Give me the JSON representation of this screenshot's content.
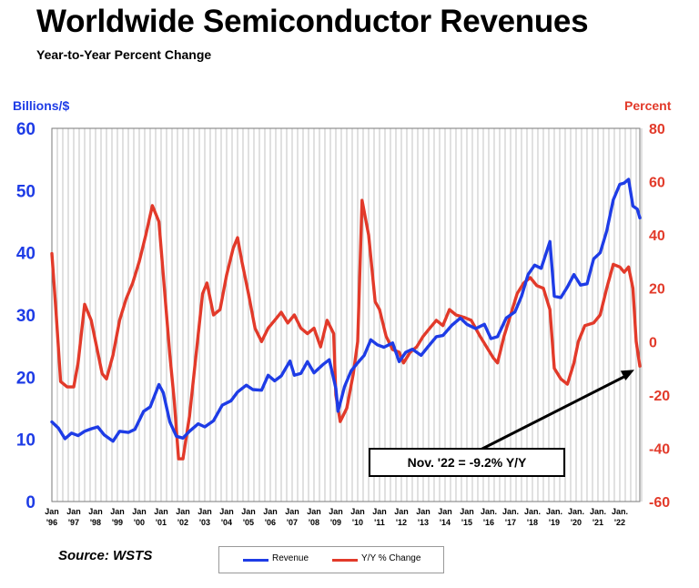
{
  "header": {
    "title": "Worldwide Semiconductor Revenues",
    "subtitle": "Year-to-Year Percent Change"
  },
  "axes": {
    "left_label": "Billions/$",
    "right_label": "Percent"
  },
  "source": "Source: WSTS",
  "legend": {
    "revenue": "Revenue",
    "yoy": "Y/Y % Change"
  },
  "callout": "Nov. '22 = -9.2% Y/Y",
  "colors": {
    "revenue": "#1e3ce6",
    "yoy": "#e23a2a"
  },
  "chart_data": {
    "type": "line",
    "title": "Worldwide Semiconductor Revenues",
    "subtitle": "Year-to-Year Percent Change",
    "ylabel_left": "Billions/$",
    "ylabel_right": "Percent",
    "ylim_left": [
      0,
      60
    ],
    "ylim_right": [
      -60,
      80
    ],
    "yticks_left": [
      0,
      10,
      20,
      30,
      40,
      50,
      60
    ],
    "yticks_right": [
      -60,
      -40,
      -20,
      0,
      20,
      40,
      60,
      80
    ],
    "xlim": [
      1996.0,
      2022.917
    ],
    "x_tick_labels": [
      {
        "top": "Jan",
        "bottom": "'96"
      },
      {
        "top": "Jan",
        "bottom": "'97"
      },
      {
        "top": "Jan",
        "bottom": "'98"
      },
      {
        "top": "Jan",
        "bottom": "'99"
      },
      {
        "top": "Jan",
        "bottom": "'00"
      },
      {
        "top": "Jan",
        "bottom": "'01"
      },
      {
        "top": "Jan",
        "bottom": "'02"
      },
      {
        "top": "Jan",
        "bottom": "'03"
      },
      {
        "top": "Jan",
        "bottom": "'04"
      },
      {
        "top": "Jan",
        "bottom": "'05"
      },
      {
        "top": "Jan",
        "bottom": "'06"
      },
      {
        "top": "Jan",
        "bottom": "'07"
      },
      {
        "top": "Jan",
        "bottom": "'08"
      },
      {
        "top": "Jan",
        "bottom": "'09"
      },
      {
        "top": "Jan",
        "bottom": "'10"
      },
      {
        "top": "Jan",
        "bottom": "'11"
      },
      {
        "top": "Jan",
        "bottom": "'12"
      },
      {
        "top": "Jan",
        "bottom": "'13"
      },
      {
        "top": "Jan",
        "bottom": "'14"
      },
      {
        "top": "Jan",
        "bottom": "'15"
      },
      {
        "top": "Jan.",
        "bottom": "'16"
      },
      {
        "top": "Jan.",
        "bottom": "'17"
      },
      {
        "top": "Jan.",
        "bottom": "'18"
      },
      {
        "top": "Jan.",
        "bottom": "'19"
      },
      {
        "top": "Jan.",
        "bottom": "'20"
      },
      {
        "top": "Jan.",
        "bottom": "'21"
      },
      {
        "top": "Jan.",
        "bottom": "'22"
      }
    ],
    "grid": "vertical",
    "legend_position": "bottom-center",
    "series": [
      {
        "name": "Revenue",
        "axis": "left",
        "points": [
          [
            1996.0,
            12.8
          ],
          [
            1996.3,
            11.8
          ],
          [
            1996.6,
            10.1
          ],
          [
            1996.9,
            11.0
          ],
          [
            1997.2,
            10.6
          ],
          [
            1997.5,
            11.3
          ],
          [
            1997.8,
            11.7
          ],
          [
            1998.1,
            12.0
          ],
          [
            1998.4,
            10.7
          ],
          [
            1998.8,
            9.7
          ],
          [
            1999.1,
            11.3
          ],
          [
            1999.5,
            11.1
          ],
          [
            1999.8,
            11.6
          ],
          [
            2000.2,
            14.5
          ],
          [
            2000.5,
            15.2
          ],
          [
            2000.9,
            18.8
          ],
          [
            2001.1,
            17.5
          ],
          [
            2001.4,
            12.8
          ],
          [
            2001.7,
            10.5
          ],
          [
            2002.0,
            10.2
          ],
          [
            2002.3,
            11.3
          ],
          [
            2002.7,
            12.5
          ],
          [
            2003.0,
            12.0
          ],
          [
            2003.4,
            13.0
          ],
          [
            2003.8,
            15.5
          ],
          [
            2004.2,
            16.2
          ],
          [
            2004.5,
            17.6
          ],
          [
            2004.9,
            18.7
          ],
          [
            2005.2,
            18.0
          ],
          [
            2005.6,
            17.9
          ],
          [
            2005.9,
            20.3
          ],
          [
            2006.2,
            19.4
          ],
          [
            2006.5,
            20.2
          ],
          [
            2006.9,
            22.6
          ],
          [
            2007.1,
            20.3
          ],
          [
            2007.4,
            20.6
          ],
          [
            2007.7,
            22.5
          ],
          [
            2008.0,
            20.7
          ],
          [
            2008.4,
            22.0
          ],
          [
            2008.7,
            22.8
          ],
          [
            2009.0,
            18.2
          ],
          [
            2009.1,
            14.5
          ],
          [
            2009.4,
            18.5
          ],
          [
            2009.7,
            21.0
          ],
          [
            2010.0,
            22.3
          ],
          [
            2010.3,
            23.5
          ],
          [
            2010.6,
            26.0
          ],
          [
            2010.9,
            25.2
          ],
          [
            2011.2,
            24.8
          ],
          [
            2011.6,
            25.5
          ],
          [
            2011.9,
            22.5
          ],
          [
            2012.2,
            24.0
          ],
          [
            2012.5,
            24.5
          ],
          [
            2012.9,
            23.5
          ],
          [
            2013.2,
            24.8
          ],
          [
            2013.6,
            26.5
          ],
          [
            2013.9,
            26.7
          ],
          [
            2014.3,
            28.3
          ],
          [
            2014.7,
            29.5
          ],
          [
            2015.0,
            28.5
          ],
          [
            2015.4,
            27.8
          ],
          [
            2015.8,
            28.5
          ],
          [
            2016.1,
            26.2
          ],
          [
            2016.4,
            26.5
          ],
          [
            2016.8,
            29.5
          ],
          [
            2017.2,
            30.5
          ],
          [
            2017.5,
            33.0
          ],
          [
            2017.8,
            36.5
          ],
          [
            2018.1,
            38.0
          ],
          [
            2018.4,
            37.5
          ],
          [
            2018.8,
            41.8
          ],
          [
            2019.0,
            33.0
          ],
          [
            2019.3,
            32.8
          ],
          [
            2019.6,
            34.5
          ],
          [
            2019.9,
            36.5
          ],
          [
            2020.2,
            34.8
          ],
          [
            2020.5,
            35.0
          ],
          [
            2020.8,
            39.0
          ],
          [
            2021.1,
            40.0
          ],
          [
            2021.4,
            43.5
          ],
          [
            2021.7,
            48.5
          ],
          [
            2022.0,
            51.0
          ],
          [
            2022.2,
            51.2
          ],
          [
            2022.4,
            51.8
          ],
          [
            2022.6,
            47.5
          ],
          [
            2022.8,
            47.0
          ],
          [
            2022.917,
            45.6
          ]
        ]
      },
      {
        "name": "Y/Y % Change",
        "axis": "right",
        "points": [
          [
            1996.0,
            33.0
          ],
          [
            1996.2,
            10.0
          ],
          [
            1996.4,
            -15.0
          ],
          [
            1996.7,
            -17.0
          ],
          [
            1997.0,
            -17.0
          ],
          [
            1997.2,
            -8.0
          ],
          [
            1997.5,
            14.0
          ],
          [
            1997.8,
            8.0
          ],
          [
            1998.0,
            0.0
          ],
          [
            1998.3,
            -12.0
          ],
          [
            1998.5,
            -14.0
          ],
          [
            1998.8,
            -5.0
          ],
          [
            1999.1,
            8.0
          ],
          [
            1999.4,
            16.0
          ],
          [
            1999.7,
            22.0
          ],
          [
            2000.0,
            30.0
          ],
          [
            2000.3,
            40.0
          ],
          [
            2000.6,
            51.0
          ],
          [
            2000.9,
            45.0
          ],
          [
            2001.1,
            25.0
          ],
          [
            2001.4,
            -5.0
          ],
          [
            2001.6,
            -22.0
          ],
          [
            2001.8,
            -44.0
          ],
          [
            2002.0,
            -44.0
          ],
          [
            2002.3,
            -28.0
          ],
          [
            2002.6,
            -5.0
          ],
          [
            2002.9,
            18.0
          ],
          [
            2003.1,
            22.0
          ],
          [
            2003.4,
            10.0
          ],
          [
            2003.7,
            12.0
          ],
          [
            2004.0,
            25.0
          ],
          [
            2004.3,
            35.0
          ],
          [
            2004.5,
            39.0
          ],
          [
            2004.7,
            30.0
          ],
          [
            2005.0,
            18.0
          ],
          [
            2005.3,
            5.0
          ],
          [
            2005.6,
            0.0
          ],
          [
            2005.9,
            5.0
          ],
          [
            2006.2,
            8.0
          ],
          [
            2006.5,
            11.0
          ],
          [
            2006.8,
            7.0
          ],
          [
            2007.1,
            10.0
          ],
          [
            2007.4,
            5.0
          ],
          [
            2007.7,
            3.0
          ],
          [
            2008.0,
            5.0
          ],
          [
            2008.3,
            -2.0
          ],
          [
            2008.6,
            8.0
          ],
          [
            2008.9,
            3.0
          ],
          [
            2009.0,
            -20.0
          ],
          [
            2009.2,
            -30.0
          ],
          [
            2009.5,
            -25.0
          ],
          [
            2009.8,
            -12.0
          ],
          [
            2010.0,
            0.0
          ],
          [
            2010.2,
            53.0
          ],
          [
            2010.5,
            40.0
          ],
          [
            2010.8,
            15.0
          ],
          [
            2011.0,
            12.0
          ],
          [
            2011.3,
            2.0
          ],
          [
            2011.6,
            -3.0
          ],
          [
            2011.9,
            -4.0
          ],
          [
            2012.1,
            -8.0
          ],
          [
            2012.4,
            -4.0
          ],
          [
            2012.7,
            -2.0
          ],
          [
            2013.0,
            2.0
          ],
          [
            2013.3,
            5.0
          ],
          [
            2013.6,
            8.0
          ],
          [
            2013.9,
            6.0
          ],
          [
            2014.2,
            12.0
          ],
          [
            2014.5,
            10.0
          ],
          [
            2014.9,
            9.0
          ],
          [
            2015.2,
            8.0
          ],
          [
            2015.6,
            2.0
          ],
          [
            2015.9,
            -2.0
          ],
          [
            2016.2,
            -6.0
          ],
          [
            2016.4,
            -8.0
          ],
          [
            2016.7,
            2.0
          ],
          [
            2017.0,
            10.0
          ],
          [
            2017.3,
            18.0
          ],
          [
            2017.6,
            22.0
          ],
          [
            2017.9,
            24.0
          ],
          [
            2018.2,
            21.0
          ],
          [
            2018.5,
            20.0
          ],
          [
            2018.8,
            12.0
          ],
          [
            2019.0,
            -10.0
          ],
          [
            2019.3,
            -14.0
          ],
          [
            2019.6,
            -16.0
          ],
          [
            2019.9,
            -8.0
          ],
          [
            2020.1,
            0.0
          ],
          [
            2020.4,
            6.0
          ],
          [
            2020.8,
            7.0
          ],
          [
            2021.1,
            10.0
          ],
          [
            2021.4,
            20.0
          ],
          [
            2021.7,
            29.0
          ],
          [
            2022.0,
            28.0
          ],
          [
            2022.2,
            26.0
          ],
          [
            2022.4,
            28.0
          ],
          [
            2022.6,
            20.0
          ],
          [
            2022.75,
            0.0
          ],
          [
            2022.917,
            -9.2
          ]
        ]
      }
    ],
    "annotations": [
      {
        "text": "Nov. '22 = -9.2% Y/Y",
        "points_to": {
          "x": 2022.917,
          "y": -9.2,
          "axis": "right"
        }
      }
    ]
  }
}
